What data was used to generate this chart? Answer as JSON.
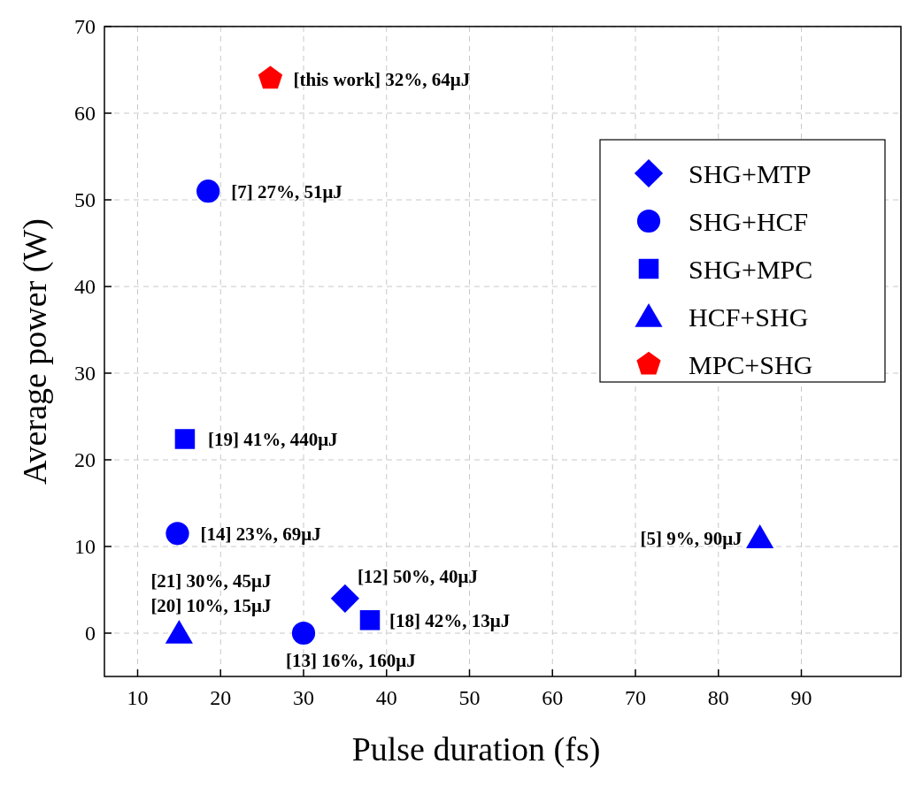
{
  "chart_data": {
    "type": "scatter",
    "xlabel": "Pulse duration (fs)",
    "ylabel": "Average power (W)",
    "xlim": [
      6,
      102
    ],
    "xticks": [
      10,
      20,
      30,
      40,
      50,
      60,
      70,
      80,
      90
    ],
    "ylim": [
      -5,
      70
    ],
    "yticks": [
      0,
      10,
      20,
      30,
      40,
      50,
      60,
      70
    ],
    "grid": true,
    "legend": "top right",
    "series": [
      {
        "name": "SHG+MTP",
        "color": "#0000ff",
        "marker": "diamond",
        "x": [
          35
        ],
        "values": [
          4
        ]
      },
      {
        "name": "SHG+HCF",
        "color": "#0000ff",
        "marker": "circle",
        "x": [
          18.5,
          14.8,
          30
        ],
        "values": [
          51,
          11.5,
          0
        ]
      },
      {
        "name": "SHG+MPC",
        "color": "#0000ff",
        "marker": "square",
        "x": [
          15.7,
          38
        ],
        "values": [
          22.4,
          1.5
        ]
      },
      {
        "name": "HCF+SHG",
        "color": "#0000ff",
        "marker": "triangle",
        "x": [
          15,
          85
        ],
        "values": [
          0,
          11
        ]
      },
      {
        "name": "MPC+SHG",
        "color": "#ff0000",
        "x": [
          26
        ],
        "values": [
          64
        ]
      }
    ],
    "annotations": [
      {
        "text": "[this work] 32%, 64μJ",
        "x": 26,
        "y": 64
      },
      {
        "text": "[7] 27%, 51μJ",
        "x": 18.5,
        "y": 51
      },
      {
        "text": "[14] 23%, 69μJ",
        "x": 14.8,
        "y": 11.5
      },
      {
        "text": "[13] 16%, 160μJ",
        "x": 30,
        "y": 0
      },
      {
        "text": "[19] 41%, 440μJ",
        "x": 15.7,
        "y": 22.4
      },
      {
        "text": "[18] 42%, 13μJ",
        "x": 38,
        "y": 1.5
      },
      {
        "text": "[12] 50%, 40μJ",
        "x": 35,
        "y": 4
      },
      {
        "text": "[21] 30%, 45μJ",
        "x": 15,
        "y": 0
      },
      {
        "text": "[20] 10%, 15μJ",
        "x": 15,
        "y": 0
      },
      {
        "text": "[5] 9%, 90μJ",
        "x": 85,
        "y": 11
      }
    ]
  }
}
